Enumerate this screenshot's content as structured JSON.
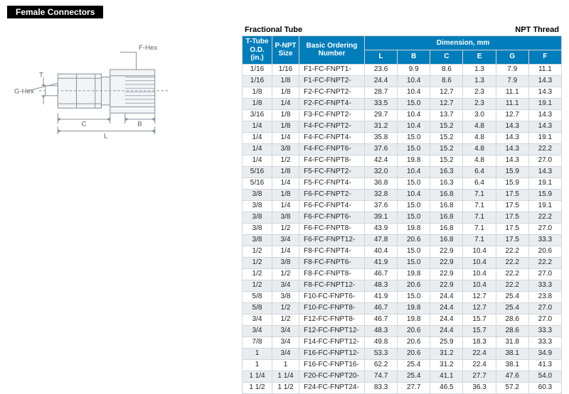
{
  "section_title": "Female Connectors",
  "diagram": {
    "labels": {
      "f_hex": "F-Hex",
      "g_hex": "G-Hex",
      "T": "T",
      "C": "C",
      "B": "B",
      "L": "L"
    },
    "stroke": "#8a949c",
    "text_color": "#5a636b"
  },
  "table": {
    "left_caption": "Fractional Tube",
    "right_caption": "NPT Thread",
    "header": {
      "t_tube": "T-Tube\nO.D.\n(in.)",
      "p_npt": "P-NPT\nSize",
      "basic": "Basic Ordering\nNumber",
      "dimension": "Dimension, mm",
      "cols": [
        "L",
        "B",
        "C",
        "E",
        "G",
        "F"
      ]
    },
    "rows": [
      {
        "t": "1/16",
        "p": "1/16",
        "n": "F1-FC-FNPT1-",
        "L": "23.6",
        "B": "9.9",
        "C": "8.6",
        "E": "1.3",
        "G": "7.9",
        "F": "11.1"
      },
      {
        "t": "1/16",
        "p": "1/8",
        "n": "F1-FC-FNPT2-",
        "L": "24.4",
        "B": "10.4",
        "C": "8.6",
        "E": "1.3",
        "G": "7.9",
        "F": "14.3"
      },
      {
        "t": "1/8",
        "p": "1/8",
        "n": "F2-FC-FNPT2-",
        "L": "28.7",
        "B": "10.4",
        "C": "12.7",
        "E": "2.3",
        "G": "11.1",
        "F": "14.3"
      },
      {
        "t": "1/8",
        "p": "1/4",
        "n": "F2-FC-FNPT4-",
        "L": "33.5",
        "B": "15.0",
        "C": "12.7",
        "E": "2.3",
        "G": "11.1",
        "F": "19.1"
      },
      {
        "t": "3/16",
        "p": "1/8",
        "n": "F3-FC-FNPT2-",
        "L": "29.7",
        "B": "10.4",
        "C": "13.7",
        "E": "3.0",
        "G": "12.7",
        "F": "14.3"
      },
      {
        "t": "1/4",
        "p": "1/8",
        "n": "F4-FC-FNPT2-",
        "L": "31.2",
        "B": "10.4",
        "C": "15.2",
        "E": "4.8",
        "G": "14.3",
        "F": "14.3"
      },
      {
        "t": "1/4",
        "p": "1/4",
        "n": "F4-FC-FNPT4-",
        "L": "35.8",
        "B": "15.0",
        "C": "15.2",
        "E": "4.8",
        "G": "14.3",
        "F": "19.1"
      },
      {
        "t": "1/4",
        "p": "3/8",
        "n": "F4-FC-FNPT6-",
        "L": "37.6",
        "B": "15.0",
        "C": "15.2",
        "E": "4.8",
        "G": "14.3",
        "F": "22.2"
      },
      {
        "t": "1/4",
        "p": "1/2",
        "n": "F4-FC-FNPT8-",
        "L": "42.4",
        "B": "19.8",
        "C": "15.2",
        "E": "4.8",
        "G": "14.3",
        "F": "27.0"
      },
      {
        "t": "5/16",
        "p": "1/8",
        "n": "F5-FC-FNPT2-",
        "L": "32.0",
        "B": "10.4",
        "C": "16.3",
        "E": "6.4",
        "G": "15.9",
        "F": "14.3"
      },
      {
        "t": "5/16",
        "p": "1/4",
        "n": "F5-FC-FNPT4-",
        "L": "36.8",
        "B": "15.0",
        "C": "16.3",
        "E": "6.4",
        "G": "15.9",
        "F": "19.1"
      },
      {
        "t": "3/8",
        "p": "1/8",
        "n": "F6-FC-FNPT2-",
        "L": "32.8",
        "B": "10.4",
        "C": "16.8",
        "E": "7.1",
        "G": "17.5",
        "F": "15.9"
      },
      {
        "t": "3/8",
        "p": "1/4",
        "n": "F6-FC-FNPT4-",
        "L": "37.6",
        "B": "15.0",
        "C": "16.8",
        "E": "7.1",
        "G": "17.5",
        "F": "19.1"
      },
      {
        "t": "3/8",
        "p": "3/8",
        "n": "F6-FC-FNPT6-",
        "L": "39.1",
        "B": "15.0",
        "C": "16.8",
        "E": "7.1",
        "G": "17.5",
        "F": "22.2"
      },
      {
        "t": "3/8",
        "p": "1/2",
        "n": "F6-FC-FNPT8-",
        "L": "43.9",
        "B": "19.8",
        "C": "16.8",
        "E": "7.1",
        "G": "17.5",
        "F": "27.0"
      },
      {
        "t": "3/8",
        "p": "3/4",
        "n": "F6-FC-FNPT12-",
        "L": "47.8",
        "B": "20.6",
        "C": "16.8",
        "E": "7.1",
        "G": "17.5",
        "F": "33.3"
      },
      {
        "t": "1/2",
        "p": "1/4",
        "n": "F8-FC-FNPT4-",
        "L": "40.4",
        "B": "15.0",
        "C": "22.9",
        "E": "10.4",
        "G": "22.2",
        "F": "20.6"
      },
      {
        "t": "1/2",
        "p": "3/8",
        "n": "F8-FC-FNPT6-",
        "L": "41.9",
        "B": "15.0",
        "C": "22.9",
        "E": "10.4",
        "G": "22.2",
        "F": "22.2"
      },
      {
        "t": "1/2",
        "p": "1/2",
        "n": "F8-FC-FNPT8-",
        "L": "46.7",
        "B": "19.8",
        "C": "22.9",
        "E": "10.4",
        "G": "22.2",
        "F": "27.0"
      },
      {
        "t": "1/2",
        "p": "3/4",
        "n": "F8-FC-FNPT12-",
        "L": "48.3",
        "B": "20.6",
        "C": "22.9",
        "E": "10.4",
        "G": "22.2",
        "F": "33.3"
      },
      {
        "t": "5/8",
        "p": "3/8",
        "n": "F10-FC-FNPT6-",
        "L": "41.9",
        "B": "15.0",
        "C": "24.4",
        "E": "12.7",
        "G": "25.4",
        "F": "23.8"
      },
      {
        "t": "5/8",
        "p": "1/2",
        "n": "F10-FC-FNPT8-",
        "L": "46.7",
        "B": "19.8",
        "C": "24.4",
        "E": "12.7",
        "G": "25.4",
        "F": "27.0"
      },
      {
        "t": "3/4",
        "p": "1/2",
        "n": "F12-FC-FNPT8-",
        "L": "46.7",
        "B": "19.8",
        "C": "24.4",
        "E": "15.7",
        "G": "28.6",
        "F": "27.0"
      },
      {
        "t": "3/4",
        "p": "3/4",
        "n": "F12-FC-FNPT12-",
        "L": "48.3",
        "B": "20.6",
        "C": "24.4",
        "E": "15.7",
        "G": "28.6",
        "F": "33.3"
      },
      {
        "t": "7/8",
        "p": "3/4",
        "n": "F14-FC-FNPT12-",
        "L": "49.8",
        "B": "20.6",
        "C": "25.9",
        "E": "18.3",
        "G": "31.8",
        "F": "33.3"
      },
      {
        "t": "1",
        "p": "3/4",
        "n": "F16-FC-FNPT12-",
        "L": "53.3",
        "B": "20.6",
        "C": "31.2",
        "E": "22.4",
        "G": "38.1",
        "F": "34.9"
      },
      {
        "t": "1",
        "p": "1",
        "n": "F16-FC-FNPT16-",
        "L": "62.2",
        "B": "25.4",
        "C": "31.2",
        "E": "22.4",
        "G": "38.1",
        "F": "41.3"
      },
      {
        "t": "1 1/4",
        "p": "1 1/4",
        "n": "F20-FC-FNPT20-",
        "L": "74.7",
        "B": "25.4",
        "C": "41.1",
        "E": "27.7",
        "G": "47.6",
        "F": "54.0"
      },
      {
        "t": "1 1/2",
        "p": "1 1/2",
        "n": "F24-FC-FNPT24-",
        "L": "83.3",
        "B": "27.7",
        "C": "46.5",
        "E": "36.3",
        "G": "57.2",
        "F": "60.3"
      }
    ],
    "header_bg": "#007dba",
    "header_fg": "#ffffff",
    "border_color": "#cfd6dc",
    "alt_bg": "#e9edf0"
  }
}
